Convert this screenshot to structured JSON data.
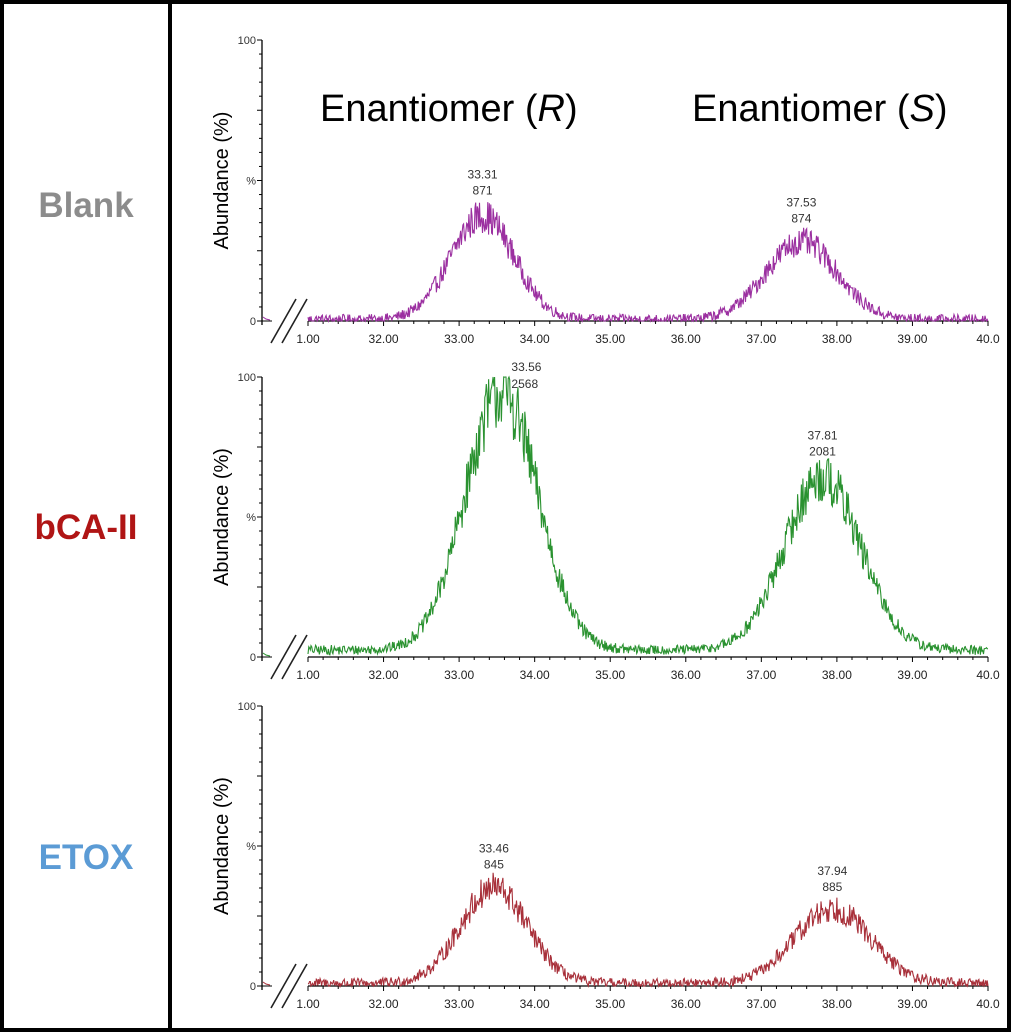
{
  "headers": {
    "r_prefix": "Enantiomer (",
    "r_letter": "R",
    "r_suffix": ")",
    "s_prefix": "Enantiomer (",
    "s_letter": "S",
    "s_suffix": ")"
  },
  "chart_data": [
    {
      "type": "line",
      "sample": "Blank",
      "label_color": "#8c8c8c",
      "line_color": "#9b2fa0",
      "ylabel": "Abundance (%)",
      "y_tick_labels": [
        "100",
        "%",
        "0"
      ],
      "ylim": [
        0,
        100
      ],
      "xlim": [
        31.0,
        40.0
      ],
      "x_tick_labels": [
        "1.00",
        "32.00",
        "33.00",
        "34.00",
        "35.00",
        "36.00",
        "37.00",
        "38.00",
        "39.00",
        "40.0"
      ],
      "peaks": [
        {
          "x": 33.31,
          "y": 40,
          "width": 0.42,
          "time_label": "33.31",
          "area_label": "871"
        },
        {
          "x": 37.53,
          "y": 30,
          "width": 0.47,
          "time_label": "37.53",
          "area_label": "874"
        }
      ],
      "baseline": 0.6,
      "axis_break": true
    },
    {
      "type": "line",
      "sample": "bCA-II",
      "label_color": "#b01515",
      "line_color": "#2a9230",
      "ylabel": "Abundance (%)",
      "y_tick_labels": [
        "100",
        "%",
        "0"
      ],
      "ylim": [
        0,
        100
      ],
      "xlim": [
        31.0,
        40.0
      ],
      "x_tick_labels": [
        "1.00",
        "32.00",
        "33.00",
        "34.00",
        "35.00",
        "36.00",
        "37.00",
        "38.00",
        "39.00",
        "40.0"
      ],
      "peaks": [
        {
          "x": 33.56,
          "y": 100,
          "width": 0.48,
          "time_label": "33.56",
          "area_label": "2568"
        },
        {
          "x": 37.81,
          "y": 67,
          "width": 0.5,
          "time_label": "37.81",
          "area_label": "2081"
        }
      ],
      "baseline": 2.5,
      "axis_break": true
    },
    {
      "type": "line",
      "sample": "ETOX",
      "label_color": "#5b9bd5",
      "line_color": "#a8303a",
      "ylabel": "Abundance (%)",
      "y_tick_labels": [
        "100",
        "%",
        "0"
      ],
      "ylim": [
        0,
        100
      ],
      "xlim": [
        31.0,
        40.0
      ],
      "x_tick_labels": [
        "1.00",
        "32.00",
        "33.00",
        "34.00",
        "35.00",
        "36.00",
        "37.00",
        "38.00",
        "39.00",
        "40.0"
      ],
      "peaks": [
        {
          "x": 33.46,
          "y": 37,
          "width": 0.44,
          "time_label": "33.46",
          "area_label": "845"
        },
        {
          "x": 37.94,
          "y": 29,
          "width": 0.5,
          "time_label": "37.94",
          "area_label": "885"
        }
      ],
      "baseline": 1.0,
      "axis_break": true
    }
  ]
}
